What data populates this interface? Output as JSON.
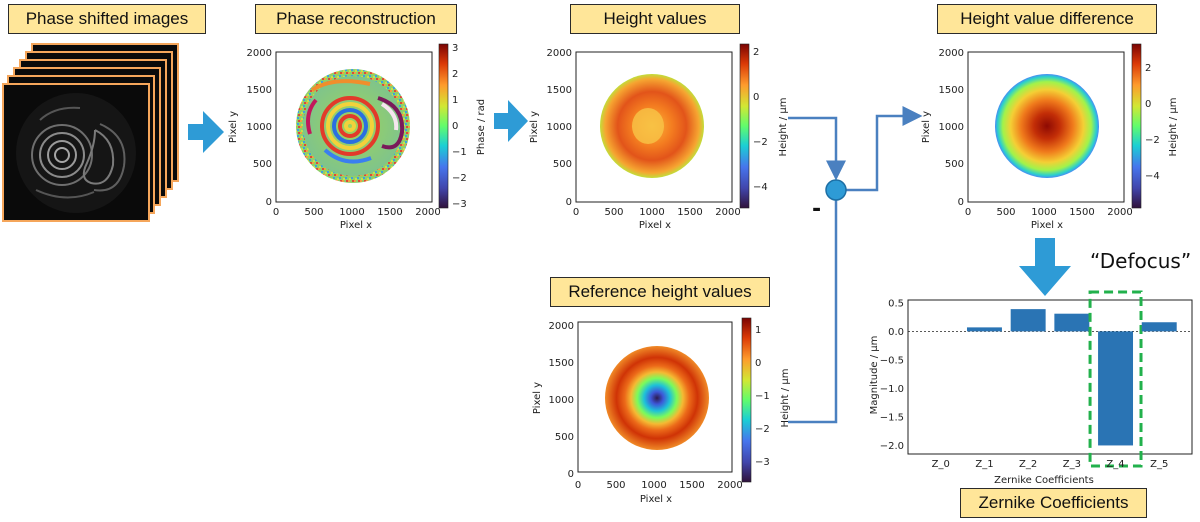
{
  "labels": {
    "phase_shifted": "Phase shifted images",
    "phase_reconstruction": "Phase reconstruction",
    "height_values": "Height values",
    "height_difference": "Height value difference",
    "reference_height": "Reference height values",
    "zernike": "Zernike Coefficients",
    "defocus": "“Defocus”",
    "minus": "-"
  },
  "plots": {
    "phase": {
      "xlabel": "Pixel x",
      "ylabel": "Pixel y",
      "colorbar_label": "Phase / rad",
      "cbar_ticks": [
        "3",
        "2",
        "1",
        "0",
        "−1",
        "−2",
        "−3"
      ]
    },
    "height": {
      "xlabel": "Pixel x",
      "ylabel": "Pixel y",
      "colorbar_label": "Height / µm",
      "cbar_ticks": [
        "2",
        "0",
        "−2",
        "−4"
      ]
    },
    "difference": {
      "xlabel": "Pixel x",
      "ylabel": "Pixel y",
      "colorbar_label": "Height / µm",
      "cbar_ticks": [
        "2",
        "0",
        "−2",
        "−4"
      ]
    },
    "reference": {
      "xlabel": "Pixel x",
      "ylabel": "Pixel y",
      "colorbar_label": "Height / µm",
      "cbar_ticks": [
        "1",
        "0",
        "−1",
        "−2",
        "−3"
      ]
    },
    "axis_ticks_x": [
      "0",
      "500",
      "1000",
      "1500",
      "2000"
    ],
    "axis_ticks_y": [
      "2000",
      "1500",
      "1000",
      "500",
      "0"
    ]
  },
  "colors": {
    "arrow": "#2e9bd6",
    "label_bg": "#ffe699",
    "bar": "#2a74b4",
    "highlight": "#22b14c",
    "line": "#4a80c0"
  },
  "chart_data": {
    "type": "bar",
    "categories": [
      "Z_0",
      "Z_1",
      "Z_2",
      "Z_3",
      "Z_4",
      "Z_5"
    ],
    "values": [
      0,
      0.07,
      0.39,
      0.31,
      -2.0,
      0.16
    ],
    "xlabel": "Zernike Coefficients",
    "ylabel": "Magnitude / µm",
    "ylim": [
      -2.15,
      0.55
    ],
    "yticks": [
      "0.5",
      "0.0",
      "−0.5",
      "−1.0",
      "−1.5",
      "−2.0"
    ],
    "highlight": "Z_4"
  }
}
